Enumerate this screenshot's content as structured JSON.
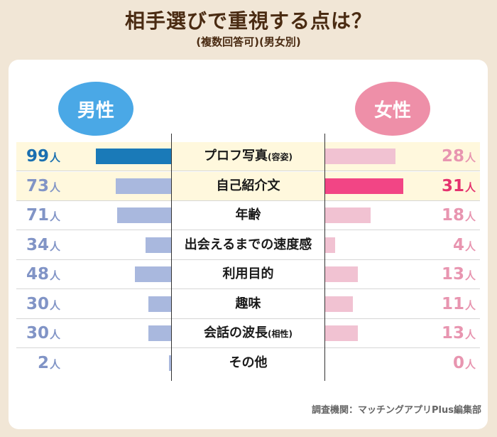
{
  "chart_data": {
    "type": "bar",
    "title": "相手選びで重視する点は？",
    "subtitle": "(複数回答可)(男女別)",
    "categories": [
      {
        "main": "プロフ写真",
        "paren": "(容姿)"
      },
      {
        "main": "自己紹介文",
        "paren": ""
      },
      {
        "main": "年齢",
        "paren": ""
      },
      {
        "main": "出会えるまでの速度感",
        "paren": ""
      },
      {
        "main": "利用目的",
        "paren": ""
      },
      {
        "main": "趣味",
        "paren": ""
      },
      {
        "main": "会話の波長",
        "paren": "(相性)"
      },
      {
        "main": "その他",
        "paren": ""
      }
    ],
    "unit": "人",
    "series": [
      {
        "name": "男性",
        "values": [
          99,
          73,
          71,
          34,
          48,
          30,
          30,
          2
        ]
      },
      {
        "name": "女性",
        "values": [
          28,
          31,
          18,
          4,
          13,
          11,
          13,
          0
        ]
      }
    ],
    "highlight": {
      "男性": 0,
      "女性": 1
    },
    "source": "調査機関：マッチングアプリPlus編集部"
  },
  "colors": {
    "male_bar": "#a9b8de",
    "male_bar_hl": "#1a7ab8",
    "male_text": "#8194c6",
    "male_text_hl": "#1a6fb0",
    "female_bar": "#f1c2d2",
    "female_bar_hl": "#f24585",
    "female_text": "#e895b0",
    "female_text_hl": "#e5326e"
  }
}
